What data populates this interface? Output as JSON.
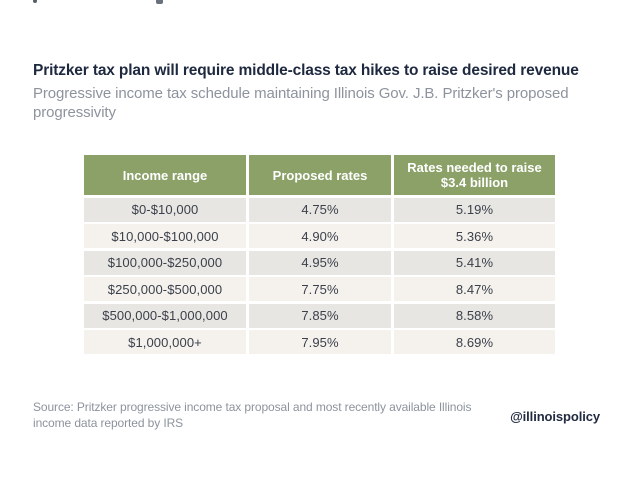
{
  "header": {
    "title": "Pritzker tax plan will require middle-class tax hikes to raise desired revenue",
    "subtitle": "Progressive income tax schedule maintaining Illinois Gov. J.B. Pritzker's proposed progressivity"
  },
  "chart_data": {
    "type": "table",
    "title": "Pritzker tax plan will require middle-class tax hikes to raise desired revenue",
    "subtitle": "Progressive income tax schedule maintaining Illinois Gov. J.B. Pritzker's proposed progressivity",
    "columns": [
      "Income range",
      "Proposed rates",
      "Rates needed to raise $3.4 billion"
    ],
    "rows": [
      [
        "$0-$10,000",
        "4.75%",
        "5.19%"
      ],
      [
        "$10,000-$100,000",
        "4.90%",
        "5.36%"
      ],
      [
        "$100,000-$250,000",
        "4.95%",
        "5.41%"
      ],
      [
        "$250,000-$500,000",
        "7.75%",
        "8.47%"
      ],
      [
        "$500,000-$1,000,000",
        "7.85%",
        "8.58%"
      ],
      [
        "$1,000,000+",
        "7.95%",
        "8.69%"
      ]
    ],
    "layout": {
      "header_bg": "#8ba168",
      "row_colors_alternating": [
        "#e7e6e3",
        "#f5f2ee"
      ],
      "header_text_color": "#ffffff",
      "cell_text_color": "#3b404a",
      "grid": "white gaps between cells"
    }
  },
  "footer": {
    "source": "Source: Pritzker progressive income tax proposal and most recently available Illinois income data reported by IRS",
    "handle": "@illinoispolicy"
  },
  "colors": {
    "title_navy": "#1e2940",
    "muted_gray": "#8d939d",
    "accent_green": "#8ba168",
    "background": "#ffffff"
  }
}
